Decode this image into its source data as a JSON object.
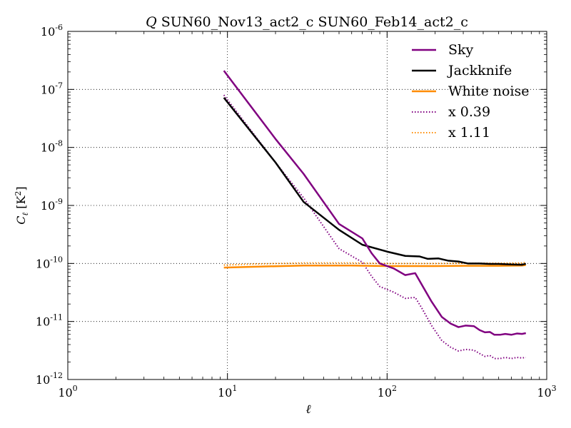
{
  "chart_data": {
    "type": "line",
    "title_symbol": "Q",
    "title_text": " SUN60_Nov13_act2_c SUN60_Feb14_act2_c",
    "xlabel": "ℓ",
    "ylabel_main": "C",
    "ylabel_sub": "ℓ",
    "ylabel_unit": " [K",
    "ylabel_unit_sup": "2",
    "ylabel_unit_close": "]",
    "x_scale": "log",
    "y_scale": "log",
    "xlim": [
      1,
      1000
    ],
    "ylim": [
      1e-12,
      1e-06
    ],
    "grid": true,
    "legend_position": "top-right",
    "x_ticks": [
      {
        "value": 1,
        "base": "10",
        "exp": "0"
      },
      {
        "value": 10,
        "base": "10",
        "exp": "1"
      },
      {
        "value": 100,
        "base": "10",
        "exp": "2"
      },
      {
        "value": 1000,
        "base": "10",
        "exp": "3"
      }
    ],
    "y_ticks": [
      {
        "value": 1e-12,
        "base": "10",
        "exp": "-12"
      },
      {
        "value": 1e-11,
        "base": "10",
        "exp": "-11"
      },
      {
        "value": 1e-10,
        "base": "10",
        "exp": "-10"
      },
      {
        "value": 1e-09,
        "base": "10",
        "exp": "-9"
      },
      {
        "value": 1e-08,
        "base": "10",
        "exp": "-8"
      },
      {
        "value": 1e-07,
        "base": "10",
        "exp": "-7"
      },
      {
        "value": 1e-06,
        "base": "10",
        "exp": "-6"
      }
    ],
    "series": [
      {
        "name": "Sky",
        "color": "#800080",
        "style": "solid",
        "points": [
          [
            9.5,
            2.1e-07
          ],
          [
            20,
            1.4e-08
          ],
          [
            30,
            3.5e-09
          ],
          [
            50,
            4.8e-10
          ],
          [
            70,
            2.7e-10
          ],
          [
            80,
            1.5e-10
          ],
          [
            90,
            1e-10
          ],
          [
            110,
            8.2e-11
          ],
          [
            130,
            6.3e-11
          ],
          [
            150,
            6.8e-11
          ],
          [
            165,
            4.3e-11
          ],
          [
            190,
            2.2e-11
          ],
          [
            220,
            1.2e-11
          ],
          [
            250,
            9.2e-12
          ],
          [
            280,
            8e-12
          ],
          [
            310,
            8.5e-12
          ],
          [
            350,
            8.3e-12
          ],
          [
            380,
            7.1e-12
          ],
          [
            410,
            6.5e-12
          ],
          [
            440,
            6.6e-12
          ],
          [
            470,
            5.9e-12
          ],
          [
            510,
            5.9e-12
          ],
          [
            550,
            6.1e-12
          ],
          [
            600,
            5.9e-12
          ],
          [
            650,
            6.2e-12
          ],
          [
            700,
            6.1e-12
          ],
          [
            740,
            6.3e-12
          ]
        ]
      },
      {
        "name": "Jackknife",
        "color": "#000000",
        "style": "solid",
        "points": [
          [
            9.5,
            7.2e-08
          ],
          [
            20,
            5.5e-09
          ],
          [
            30,
            1.15e-09
          ],
          [
            50,
            3.8e-10
          ],
          [
            70,
            2.1e-10
          ],
          [
            100,
            1.6e-10
          ],
          [
            130,
            1.35e-10
          ],
          [
            160,
            1.32e-10
          ],
          [
            180,
            1.2e-10
          ],
          [
            210,
            1.22e-10
          ],
          [
            240,
            1.12e-10
          ],
          [
            280,
            1.08e-10
          ],
          [
            320,
            1e-10
          ],
          [
            380,
            1e-10
          ],
          [
            440,
            9.8e-11
          ],
          [
            500,
            9.8e-11
          ],
          [
            600,
            9.6e-11
          ],
          [
            700,
            9.5e-11
          ],
          [
            740,
            9.9e-11
          ]
        ]
      },
      {
        "name": "White noise",
        "color": "#ff8c00",
        "style": "solid",
        "points": [
          [
            9.5,
            8.5e-11
          ],
          [
            15,
            8.8e-11
          ],
          [
            30,
            9.2e-11
          ],
          [
            60,
            9.2e-11
          ],
          [
            100,
            9e-11
          ],
          [
            200,
            9e-11
          ],
          [
            300,
            9.1e-11
          ],
          [
            500,
            9.1e-11
          ],
          [
            700,
            9.2e-11
          ],
          [
            740,
            9.4e-11
          ]
        ]
      },
      {
        "name": "x 0.39",
        "color": "#800080",
        "style": "dotted",
        "points": [
          [
            9.5,
            8e-08
          ],
          [
            20,
            5.5e-09
          ],
          [
            30,
            1.35e-09
          ],
          [
            50,
            1.8e-10
          ],
          [
            70,
            1.05e-10
          ],
          [
            80,
            6e-11
          ],
          [
            90,
            4e-11
          ],
          [
            110,
            3.2e-11
          ],
          [
            130,
            2.5e-11
          ],
          [
            150,
            2.6e-11
          ],
          [
            165,
            1.7e-11
          ],
          [
            190,
            8.5e-12
          ],
          [
            220,
            4.7e-12
          ],
          [
            250,
            3.6e-12
          ],
          [
            280,
            3.1e-12
          ],
          [
            310,
            3.3e-12
          ],
          [
            350,
            3.2e-12
          ],
          [
            380,
            2.8e-12
          ],
          [
            410,
            2.5e-12
          ],
          [
            440,
            2.6e-12
          ],
          [
            470,
            2.3e-12
          ],
          [
            510,
            2.3e-12
          ],
          [
            550,
            2.4e-12
          ],
          [
            600,
            2.3e-12
          ],
          [
            650,
            2.4e-12
          ],
          [
            700,
            2.35e-12
          ],
          [
            740,
            2.4e-12
          ]
        ]
      },
      {
        "name": "x 1.11",
        "color": "#ff8c00",
        "style": "dotted",
        "points": [
          [
            9.5,
            9.4e-11
          ],
          [
            15,
            9.8e-11
          ],
          [
            30,
            1.02e-10
          ],
          [
            60,
            1.02e-10
          ],
          [
            100,
            1e-10
          ],
          [
            200,
            1e-10
          ],
          [
            300,
            1.01e-10
          ],
          [
            500,
            1.01e-10
          ],
          [
            700,
            1.02e-10
          ],
          [
            740,
            1.04e-10
          ]
        ]
      }
    ]
  }
}
